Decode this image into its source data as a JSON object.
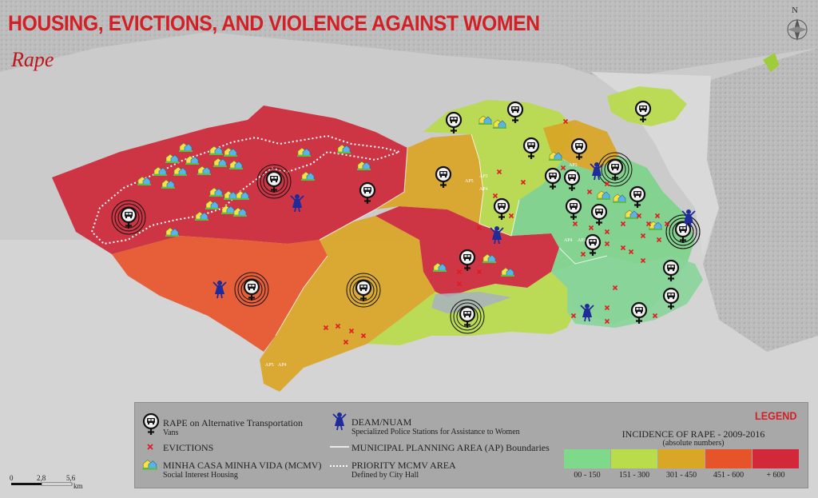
{
  "title": "HOUSING, EVICTIONS, AND VIOLENCE AGAINST WOMEN",
  "subtitle": "Rape",
  "north": "N",
  "legend": {
    "heading": "LEGEND",
    "rape_vans": {
      "label": "RAPE on Alternative Transportation",
      "sublabel": "Vans",
      "icon": "female-van-icon"
    },
    "evictions": {
      "label": "EVICTIONS",
      "icon": "red-x-icon"
    },
    "mcmv": {
      "label": "MINHA CASA MINHA VIDA (MCMV)",
      "sublabel": "Social Interest Housing",
      "icon": "housing-icon"
    },
    "deam": {
      "label": "DEAM/NUAM",
      "sublabel": "Specialized Police Stations for Assistance to Women",
      "icon": "police-woman-icon"
    },
    "ap_boundaries": {
      "label": "MUNICIPAL PLANNING AREA (AP) Boundaries"
    },
    "priority": {
      "label": "PRIORITY MCMV AREA",
      "sublabel": "Defined by City Hall"
    },
    "incidence": {
      "title": "INCIDENCE OF RAPE - 2009-2016",
      "subtitle": "(absolute numbers)",
      "bins": [
        {
          "label": "00 - 150",
          "color": "#7fd98a"
        },
        {
          "label": "151 - 300",
          "color": "#b9dc4a"
        },
        {
          "label": "301 - 450",
          "color": "#d9a626"
        },
        {
          "label": "451 - 600",
          "color": "#e8542a"
        },
        {
          "label": "+ 600",
          "color": "#d3283a"
        }
      ]
    }
  },
  "scale": {
    "ticks": [
      "0",
      "2,8",
      "5,6"
    ],
    "unit": "km"
  },
  "ap_labels": {
    "ap3_a": "AP3",
    "ap4_a": "AP4",
    "ap5": "AP5",
    "ap4_b": "AP4",
    "ap3_b": "AP3",
    "ap4_c": "AP4",
    "ap2": "AP2",
    "ap5_b": "AP5",
    "ap4_d": "AP4"
  }
}
